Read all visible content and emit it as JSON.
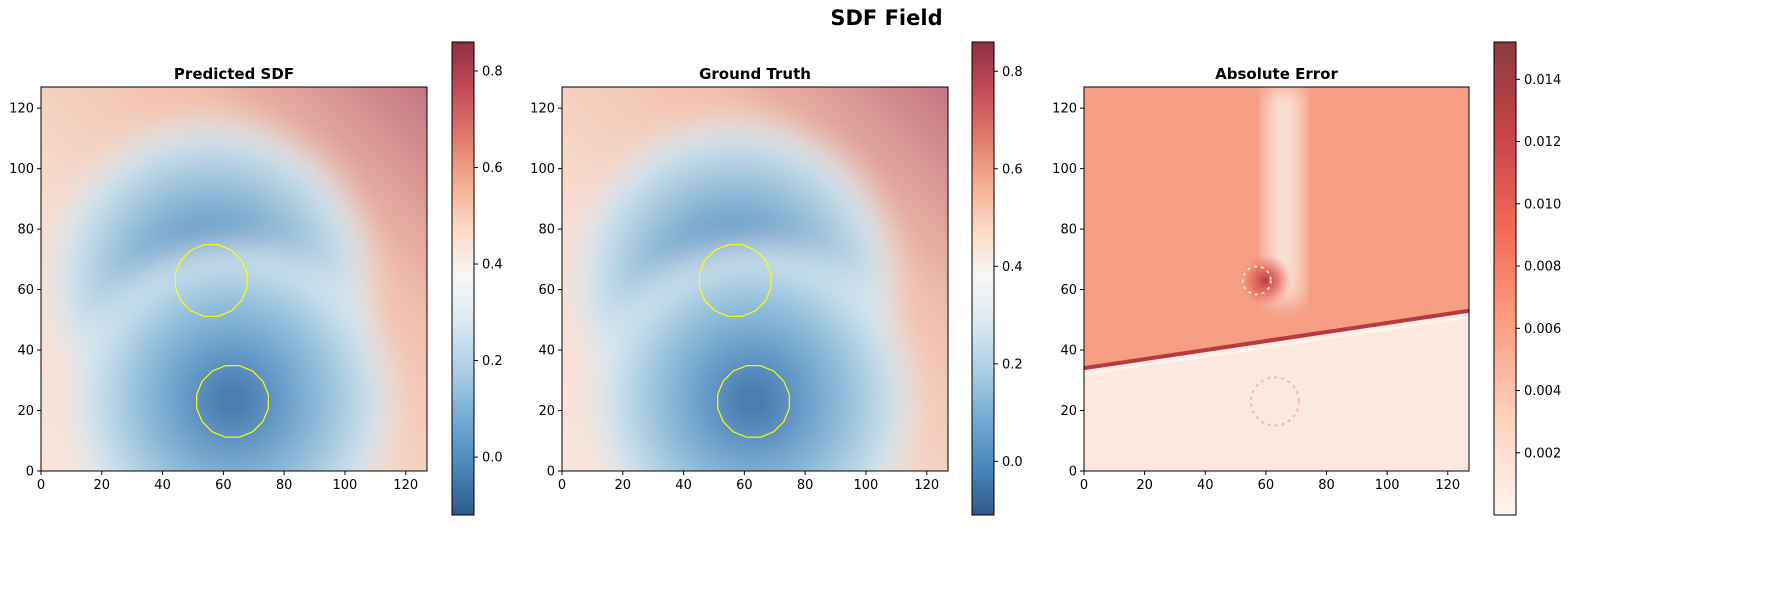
{
  "figure": {
    "title": "SDF Field"
  },
  "chart_data": [
    {
      "type": "heatmap",
      "title": "Predicted SDF",
      "xlabel": "",
      "ylabel": "",
      "xlim": [
        0,
        127
      ],
      "ylim": [
        0,
        127
      ],
      "x_ticks": [
        "0",
        "20",
        "40",
        "60",
        "80",
        "100",
        "120"
      ],
      "y_ticks": [
        "0",
        "20",
        "40",
        "60",
        "80",
        "100",
        "120"
      ],
      "colormap": "RdBu_r",
      "colorbar": {
        "min": -0.12,
        "max": 0.86,
        "ticks": [
          "0.0",
          "0.2",
          "0.4",
          "0.6",
          "0.8"
        ]
      },
      "circles": [
        {
          "cx": 56,
          "cy": 63,
          "r": 12,
          "value": -0.12
        },
        {
          "cx": 63,
          "cy": 23,
          "r": 12,
          "value": -0.12
        }
      ],
      "zero_contour_color": "#ffff00",
      "max_value": 0.86
    },
    {
      "type": "heatmap",
      "title": "Ground Truth",
      "xlabel": "",
      "ylabel": "",
      "xlim": [
        0,
        127
      ],
      "ylim": [
        0,
        127
      ],
      "x_ticks": [
        "0",
        "20",
        "40",
        "60",
        "80",
        "100",
        "120"
      ],
      "y_ticks": [
        "0",
        "20",
        "40",
        "60",
        "80",
        "100",
        "120"
      ],
      "colormap": "RdBu_r",
      "colorbar": {
        "min": -0.11,
        "max": 0.86,
        "ticks": [
          "0.0",
          "0.2",
          "0.4",
          "0.6",
          "0.8"
        ]
      },
      "circles": [
        {
          "cx": 57,
          "cy": 63,
          "r": 12,
          "value": -0.11
        },
        {
          "cx": 63,
          "cy": 23,
          "r": 12,
          "value": -0.11
        }
      ],
      "zero_contour_color": "#ffff00",
      "max_value": 0.86
    },
    {
      "type": "heatmap",
      "title": "Absolute Error",
      "xlabel": "",
      "ylabel": "",
      "xlim": [
        0,
        127
      ],
      "ylim": [
        0,
        127
      ],
      "x_ticks": [
        "0",
        "20",
        "40",
        "60",
        "80",
        "100",
        "120"
      ],
      "y_ticks": [
        "0",
        "20",
        "40",
        "60",
        "80",
        "100",
        "120"
      ],
      "colormap": "Reds",
      "colorbar": {
        "min": 0.0,
        "max": 0.0152,
        "ticks": [
          "0.002",
          "0.004",
          "0.006",
          "0.008",
          "0.010",
          "0.012",
          "0.014"
        ]
      },
      "error_split_line": {
        "x0": 0,
        "y0": 34,
        "x1": 127,
        "y1": 53
      },
      "upper_region_level": 0.0075,
      "lower_region_level": 0.0015,
      "peak_at": {
        "x": 60,
        "y": 63,
        "value": 0.015
      },
      "max_value": 0.0152
    }
  ]
}
